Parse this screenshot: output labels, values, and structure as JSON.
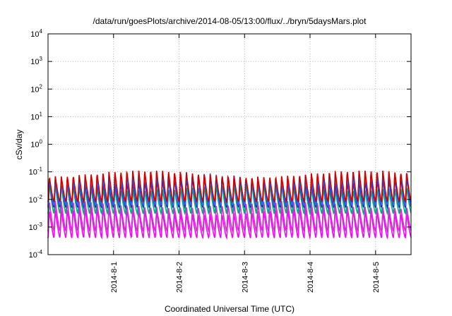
{
  "chart_data": {
    "type": "line",
    "title": "/data/run/goesPlots/archive/2014-08-05/13:00/flux/../bryn/5daysMars.plot",
    "xlabel": "Coordinated Universal Time (UTC)",
    "ylabel": "cSv/day",
    "yscale": "log",
    "ylim": [
      0.0001,
      10000
    ],
    "xlim": [
      "2014-07-31 00:00",
      "2014-08-05 13:00"
    ],
    "x_ticks": [
      "2014-8-1",
      "2014-8-2",
      "2014-8-3",
      "2014-8-4",
      "2014-8-5"
    ],
    "y_ticks": [
      {
        "base": "10",
        "exp": "-4"
      },
      {
        "base": "10",
        "exp": "-3"
      },
      {
        "base": "10",
        "exp": "-2"
      },
      {
        "base": "10",
        "exp": "-1"
      },
      {
        "base": "10",
        "exp": "0"
      },
      {
        "base": "10",
        "exp": "1"
      },
      {
        "base": "10",
        "exp": "2"
      },
      {
        "base": "10",
        "exp": "3"
      },
      {
        "base": "10",
        "exp": "4"
      }
    ],
    "grid": true,
    "series_colors": [
      "#ff00ff",
      "#cc33cc",
      "#00aa88",
      "#2222cc",
      "#3366ff",
      "#cc0000"
    ],
    "series_peak_values": [
      0.004,
      0.007,
      0.03,
      0.055,
      0.075,
      0.09
    ],
    "series_trough_values": [
      0.0004,
      0.0007,
      0.003,
      0.005,
      0.006,
      0.008
    ],
    "cycles_per_day": 11
  }
}
